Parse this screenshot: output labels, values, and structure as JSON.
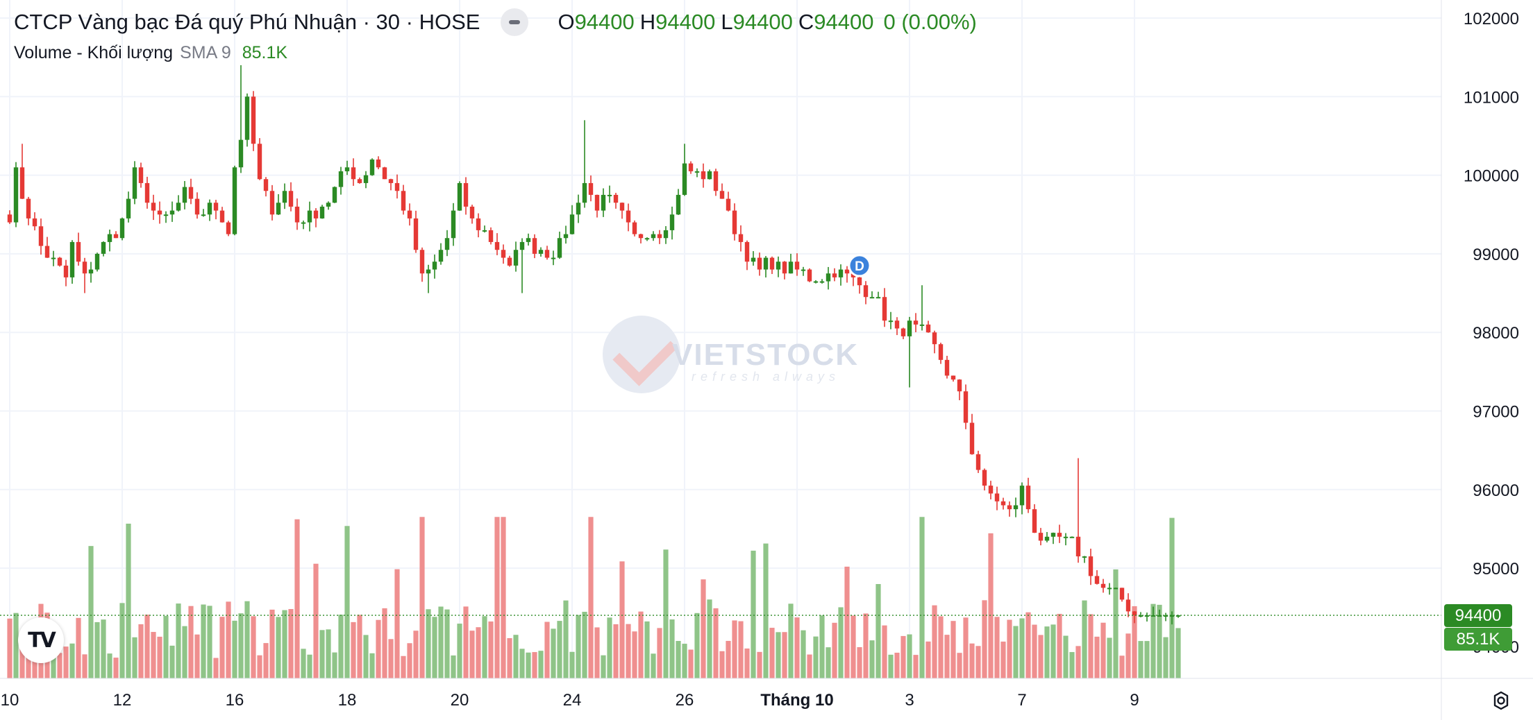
{
  "legend": {
    "symbol_title": "CTCP Vàng bạc Đá quý Phú Nhuận · 30 · HOSE",
    "ohlc": [
      {
        "label": "O",
        "value": "94400"
      },
      {
        "label": "H",
        "value": "94400"
      },
      {
        "label": "L",
        "value": "94400"
      },
      {
        "label": "C",
        "value": "94400"
      }
    ],
    "change": "0 (0.00%)",
    "volume_title": "Volume - Khối lượng",
    "sma_label": "SMA 9",
    "sma_value": "85.1K"
  },
  "last_price_tag": "94400",
  "last_volume_tag": "85.1K",
  "event_marker": "D",
  "watermark": {
    "text": "VIETSTOCK",
    "slogan": "refresh always"
  },
  "logo": "TV",
  "colors": {
    "up": "#2b8a24",
    "down": "#e53935",
    "volume_up": "#8fc488",
    "volume_down": "#ef8f8f",
    "grid": "#f0f3fa",
    "event": "#3b82dc"
  },
  "chart_data": {
    "type": "candlestick",
    "price_axis": {
      "range": [
        93300,
        102300
      ],
      "ticks": [
        "95000",
        "96000",
        "97000",
        "98000",
        "99000",
        "100000",
        "101000",
        "102000"
      ],
      "tick_values": [
        95000,
        96000,
        97000,
        98000,
        99000,
        100000,
        101000,
        102000
      ],
      "partial_label": "94000"
    },
    "x_ticks": [
      "10",
      "12",
      "16",
      "18",
      "20",
      "24",
      "26",
      "Tháng 10",
      "3",
      "7",
      "9"
    ],
    "x_tick_bar_index": [
      0,
      18,
      36,
      54,
      72,
      90,
      108,
      126,
      144,
      162,
      180
    ],
    "last_price": 94400,
    "event_bar_index": 136,
    "anchors": [
      [
        0,
        99500
      ],
      [
        1,
        100000
      ],
      [
        3,
        99500
      ],
      [
        5,
        99100
      ],
      [
        7,
        98900
      ],
      [
        9,
        98700
      ],
      [
        10,
        99100
      ],
      [
        12,
        98700
      ],
      [
        14,
        99000
      ],
      [
        16,
        99200
      ],
      [
        18,
        99400
      ],
      [
        20,
        100000
      ],
      [
        22,
        99700
      ],
      [
        24,
        99400
      ],
      [
        26,
        99500
      ],
      [
        28,
        99800
      ],
      [
        30,
        99500
      ],
      [
        33,
        99600
      ],
      [
        35,
        99300
      ],
      [
        36,
        100100
      ],
      [
        38,
        100900
      ],
      [
        40,
        99900
      ],
      [
        42,
        99600
      ],
      [
        44,
        99800
      ],
      [
        46,
        99400
      ],
      [
        48,
        99500
      ],
      [
        50,
        99600
      ],
      [
        52,
        99800
      ],
      [
        54,
        100100
      ],
      [
        56,
        99900
      ],
      [
        58,
        100200
      ],
      [
        60,
        100000
      ],
      [
        62,
        99800
      ],
      [
        64,
        99400
      ],
      [
        66,
        98700
      ],
      [
        68,
        98900
      ],
      [
        70,
        99200
      ],
      [
        72,
        99800
      ],
      [
        74,
        99400
      ],
      [
        76,
        99300
      ],
      [
        78,
        99100
      ],
      [
        80,
        98800
      ],
      [
        82,
        99200
      ],
      [
        84,
        99100
      ],
      [
        86,
        99000
      ],
      [
        88,
        99100
      ],
      [
        90,
        99500
      ],
      [
        92,
        99900
      ],
      [
        94,
        99600
      ],
      [
        96,
        99700
      ],
      [
        98,
        99500
      ],
      [
        100,
        99200
      ],
      [
        102,
        99300
      ],
      [
        104,
        99300
      ],
      [
        106,
        99500
      ],
      [
        108,
        100100
      ],
      [
        110,
        100000
      ],
      [
        112,
        100000
      ],
      [
        114,
        99700
      ],
      [
        116,
        99300
      ],
      [
        118,
        99000
      ],
      [
        120,
        98800
      ],
      [
        122,
        98900
      ],
      [
        124,
        98800
      ],
      [
        126,
        98800
      ],
      [
        128,
        98700
      ],
      [
        130,
        98700
      ],
      [
        132,
        98800
      ],
      [
        134,
        98700
      ],
      [
        136,
        98600
      ],
      [
        138,
        98500
      ],
      [
        140,
        98200
      ],
      [
        142,
        98000
      ],
      [
        144,
        98100
      ],
      [
        146,
        98000
      ],
      [
        148,
        97800
      ],
      [
        150,
        97500
      ],
      [
        152,
        97200
      ],
      [
        154,
        96500
      ],
      [
        156,
        96000
      ],
      [
        158,
        95900
      ],
      [
        160,
        95700
      ],
      [
        162,
        96000
      ],
      [
        164,
        95500
      ],
      [
        166,
        95300
      ],
      [
        168,
        95400
      ],
      [
        170,
        95300
      ],
      [
        172,
        95100
      ],
      [
        174,
        94800
      ],
      [
        176,
        94700
      ],
      [
        178,
        94600
      ],
      [
        180,
        94400
      ],
      [
        182,
        94400
      ],
      [
        185,
        94400
      ],
      [
        187,
        94400
      ]
    ],
    "volume": {
      "sma_value": "85.1K",
      "relative_heights": "0.0–1.0 of tallest visible bar, approximate"
    }
  }
}
